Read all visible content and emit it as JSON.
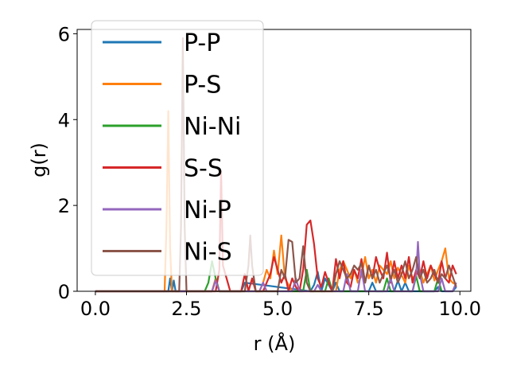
{
  "chart_data": {
    "type": "line",
    "xlabel": "r (Å)",
    "ylabel": "g(r)",
    "xlim": [
      -0.5,
      10.3
    ],
    "ylim": [
      0,
      6.1
    ],
    "xticks": [
      "0.0",
      "2.5",
      "5.0",
      "7.5",
      "10.0"
    ],
    "xtick_values": [
      0,
      2.5,
      5.0,
      7.5,
      10.0
    ],
    "yticks": [
      "0",
      "2",
      "4",
      "6"
    ],
    "ytick_values": [
      0,
      2,
      4,
      6
    ],
    "legend_position": "top-left",
    "series": [
      {
        "name": "P-P",
        "color": "#1f77b4",
        "x": [
          0,
          1.9,
          2.0,
          2.05,
          2.1,
          2.15,
          2.2,
          3.2,
          3.3,
          3.4,
          4.0,
          4.1,
          5.9,
          6.0,
          6.1,
          6.2,
          6.3,
          6.5,
          6.6,
          6.7,
          7.5,
          7.6,
          7.7,
          8.2,
          8.3,
          8.4,
          8.5,
          8.6,
          9.3,
          9.4,
          9.5,
          9.8,
          9.9
        ],
        "y": [
          0,
          0,
          0,
          0.3,
          0,
          0.25,
          0,
          0,
          0.3,
          0,
          0,
          0.2,
          0,
          0.15,
          0.45,
          0,
          0.3,
          0,
          0.2,
          0,
          0,
          0.2,
          0,
          0,
          0.25,
          0,
          0.2,
          0,
          0,
          0.1,
          0,
          0,
          0.1
        ]
      },
      {
        "name": "P-S",
        "color": "#ff7f0e",
        "x": [
          0,
          1.85,
          1.9,
          1.95,
          2.0,
          2.05,
          2.1,
          3.2,
          3.3,
          3.4,
          3.5,
          4.5,
          4.6,
          4.7,
          4.8,
          4.9,
          5.0,
          5.1,
          5.2,
          5.4,
          6.6,
          6.7,
          6.8,
          7.0,
          7.1,
          7.2,
          7.3,
          7.4,
          7.5,
          7.6,
          7.7,
          7.8,
          8.0,
          8.1,
          8.2,
          8.3,
          8.5,
          8.6,
          8.7,
          8.9,
          9.0,
          9.1,
          9.2,
          9.3,
          9.4,
          9.5,
          9.6,
          9.7,
          9.8,
          9.9
        ],
        "y": [
          0,
          0,
          0,
          1.5,
          4.2,
          1.0,
          0,
          0,
          0.3,
          0,
          0,
          0,
          0.2,
          0.5,
          0.3,
          0.95,
          0.4,
          1.3,
          0.3,
          0,
          0,
          0.5,
          0.7,
          0.3,
          0.5,
          0.2,
          0.35,
          0.8,
          0.3,
          0.5,
          0.2,
          0.6,
          0.4,
          0.7,
          0.3,
          0.55,
          0.2,
          0.6,
          0.3,
          0.5,
          0.2,
          0.4,
          0.6,
          0.25,
          0.5,
          0.7,
          1.0,
          0.3,
          0.2,
          0.15
        ]
      },
      {
        "name": "Ni-Ni",
        "color": "#2ca02c",
        "x": [
          0,
          3.0,
          3.1,
          3.2,
          3.3,
          3.4,
          5.7,
          5.8,
          5.9,
          6.3,
          6.4,
          6.5,
          7.9,
          8.0,
          8.1,
          8.7,
          8.8,
          8.9,
          9.3,
          9.4,
          9.5
        ],
        "y": [
          0,
          0,
          0.2,
          0.7,
          0.3,
          0,
          0,
          0.5,
          0,
          0,
          0.3,
          0,
          0,
          0.3,
          0,
          0,
          0.35,
          0,
          0,
          0.3,
          0
        ]
      },
      {
        "name": "S-S",
        "color": "#d62728",
        "x": [
          0,
          3.3,
          3.4,
          3.45,
          3.5,
          3.6,
          3.7,
          4.0,
          4.1,
          4.2,
          4.3,
          4.4,
          4.6,
          4.7,
          4.8,
          4.9,
          5.0,
          5.1,
          5.2,
          5.3,
          5.4,
          5.5,
          5.6,
          5.7,
          5.8,
          5.9,
          6.0,
          6.1,
          6.2,
          6.3,
          6.4,
          6.5,
          6.6,
          6.7,
          6.8,
          6.9,
          7.0,
          7.1,
          7.2,
          7.3,
          7.4,
          7.5,
          7.6,
          7.7,
          7.8,
          7.9,
          8.0,
          8.1,
          8.2,
          8.3,
          8.4,
          8.5,
          8.6,
          8.7,
          8.8,
          8.9,
          9.0,
          9.1,
          9.2,
          9.3,
          9.4,
          9.5,
          9.6,
          9.7,
          9.8,
          9.9
        ],
        "y": [
          0,
          0,
          0.5,
          2.8,
          0.6,
          0.3,
          0,
          0,
          0.4,
          0,
          0.3,
          0,
          0,
          0.2,
          0.4,
          0.8,
          0.5,
          0.2,
          0.4,
          0,
          0.3,
          0.1,
          0,
          0.5,
          1.55,
          1.65,
          1.1,
          0.3,
          0.1,
          0.45,
          0.2,
          0,
          0.75,
          0.3,
          0.7,
          0.2,
          0.1,
          0.5,
          0.3,
          0.75,
          0.2,
          0.6,
          0.3,
          0.8,
          0.5,
          0.3,
          0.9,
          0.2,
          0.7,
          0.3,
          0.6,
          0.3,
          0.8,
          0.2,
          0.5,
          0.3,
          0.7,
          0.3,
          0.6,
          0.4,
          0.2,
          0.7,
          0.3,
          0.2,
          0.6,
          0.4
        ]
      },
      {
        "name": "Ni-P",
        "color": "#9467bd",
        "x": [
          0,
          3.2,
          3.3,
          3.4,
          4.5,
          4.6,
          4.7,
          5.4,
          5.5,
          5.6,
          6.0,
          6.1,
          6.2,
          6.8,
          6.9,
          7.0,
          7.2,
          7.3,
          7.4,
          8.0,
          8.1,
          8.2,
          8.7,
          8.8,
          8.85,
          8.9,
          9.0,
          9.4,
          9.5,
          9.6,
          9.8,
          9.9
        ],
        "y": [
          0,
          0,
          0.25,
          0,
          0,
          0.2,
          0,
          0,
          0.3,
          0,
          0,
          0.15,
          0,
          0,
          0.4,
          0,
          0,
          0.5,
          0,
          0,
          0.3,
          0,
          0,
          0.4,
          1.15,
          0.4,
          0,
          0,
          0.3,
          0,
          0,
          0.2
        ]
      },
      {
        "name": "Ni-S",
        "color": "#8c564b",
        "x": [
          0,
          2.3,
          2.35,
          2.4,
          2.45,
          2.5,
          4.1,
          4.2,
          4.25,
          4.3,
          4.4,
          5.0,
          5.1,
          5.2,
          5.3,
          5.4,
          5.5,
          5.6,
          5.7,
          5.8,
          5.9,
          6.0,
          6.5,
          6.6,
          6.7,
          6.8,
          6.9,
          7.0,
          7.1,
          7.2,
          7.3,
          7.4,
          7.5,
          7.6,
          7.7,
          7.8,
          7.9,
          8.0,
          8.1,
          8.2,
          8.3,
          8.4,
          8.5,
          8.6,
          8.7,
          8.8,
          8.9,
          9.0,
          9.1,
          9.2,
          9.3,
          9.4,
          9.5,
          9.6,
          9.7,
          9.8,
          9.9
        ],
        "y": [
          0,
          0,
          1.5,
          5.9,
          1.5,
          0,
          0,
          0.6,
          1.3,
          0.6,
          0,
          0,
          0.5,
          0.3,
          1.2,
          1.15,
          0.2,
          0.3,
          1.05,
          0.2,
          0,
          0,
          0,
          0.4,
          0.7,
          0.5,
          0.3,
          0.4,
          0.6,
          0.5,
          0.65,
          0.2,
          0.6,
          0.3,
          0.5,
          0.2,
          0.4,
          0.6,
          0.3,
          0.5,
          0.2,
          0.4,
          0.7,
          0.3,
          0.5,
          0.8,
          0.3,
          0.5,
          0.2,
          0.3,
          0.5,
          0.2,
          0.4,
          0.3,
          0.6,
          0.35,
          0.1
        ]
      }
    ]
  }
}
